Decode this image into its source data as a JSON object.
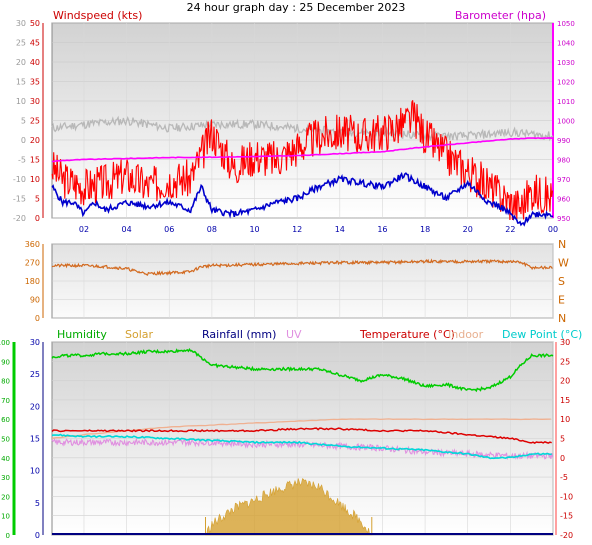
{
  "title": "24 hour graph day : 25 December 2023",
  "colors": {
    "windspeed": "#ff0000",
    "wind_avg": "#0000cc",
    "barometer": "#ff00ff",
    "baro_label": "#cc00cc",
    "gust_grey": "#b8b8b8",
    "direction": "#d2691e",
    "humidity": "#00cc00",
    "solar": "#d4a030",
    "rainfall": "#000080",
    "uv": "#e090e0",
    "temperature": "#dd0000",
    "indoor": "#f0b090",
    "dewpoint": "#00d8d8",
    "tick_grey": "#999999",
    "tick_red": "#cc0000",
    "tick_green": "#00aa00",
    "axis_blue": "#0000aa",
    "dir_tick": "#cc6600"
  },
  "panels": {
    "wind": {
      "label_left": "Windspeed (kts)",
      "label_right": "Barometer (hpa)",
      "left_outer_ticks": [
        "30",
        "25",
        "20",
        "15",
        "10",
        "5",
        "0",
        "-5",
        "-10",
        "-15",
        "-20"
      ],
      "left_inner_ticks": [
        "50",
        "45",
        "40",
        "35",
        "30",
        "25",
        "20",
        "15",
        "10",
        "5",
        "0"
      ],
      "right_ticks": [
        "1050",
        "1040",
        "1030",
        "1020",
        "1010",
        "1000",
        "990",
        "980",
        "970",
        "960",
        "950"
      ],
      "time_ticks": [
        "02",
        "04",
        "06",
        "08",
        "10",
        "12",
        "14",
        "16",
        "18",
        "20",
        "22",
        "00"
      ]
    },
    "direction": {
      "left_ticks": [
        "360",
        "270",
        "180",
        "90",
        "0"
      ],
      "right_labels": [
        "N",
        "W",
        "S",
        "E",
        "N"
      ]
    },
    "bottom": {
      "legend": {
        "humidity": "Humidity",
        "solar": "Solar",
        "rainfall": "Rainfall (mm)",
        "uv": "UV",
        "temperature": "Temperature (°C)",
        "indoor": "Indoor",
        "dewpoint": "Dew Point (°C)"
      },
      "left_outer_ticks": [
        "100",
        "90",
        "80",
        "70",
        "60",
        "50",
        "40",
        "30",
        "20",
        "10",
        "0"
      ],
      "left_inner_ticks": [
        "30",
        "25",
        "20",
        "15",
        "10",
        "5",
        "0"
      ],
      "right_ticks": [
        "30",
        "25",
        "20",
        "15",
        "10",
        "5",
        "0",
        "-5",
        "-10",
        "-15",
        "-20"
      ]
    }
  },
  "chart_data": [
    {
      "type": "line",
      "title": "Windspeed (kts) / Barometer (hpa)",
      "x_unit": "hour",
      "x_range": [
        0.5,
        24
      ],
      "ylim_windspeed": [
        0,
        50
      ],
      "ylim_barometer": [
        950,
        1050
      ],
      "series": [
        {
          "name": "Windspeed (kts)",
          "role": "gust",
          "x": [
            0.5,
            1,
            2,
            3,
            4,
            5,
            6,
            7,
            8,
            9,
            10,
            11,
            12,
            13,
            14,
            15,
            16,
            17,
            17.5,
            18,
            19,
            20,
            21,
            22,
            22.5,
            23,
            24
          ],
          "values": [
            13,
            10,
            8,
            9,
            11,
            8,
            10,
            10,
            22,
            13,
            16,
            15,
            18,
            21,
            22,
            21,
            22,
            24,
            26,
            21,
            16,
            12,
            8,
            4,
            3,
            7,
            5
          ]
        },
        {
          "name": "Windspeed (kts)",
          "role": "average",
          "x": [
            0.5,
            1,
            1.5,
            2,
            2.5,
            3,
            4,
            5,
            6,
            7,
            7.5,
            8,
            9,
            10,
            11,
            12,
            13,
            14,
            15,
            16,
            17,
            18,
            19,
            20,
            21,
            21.5,
            22,
            22.5,
            23,
            24
          ],
          "values": [
            8,
            4,
            4,
            1,
            4,
            2,
            4,
            3,
            4,
            2,
            8,
            2,
            1,
            2,
            4,
            5,
            8,
            10,
            9,
            8,
            11,
            8,
            5,
            9,
            4,
            3,
            1,
            -2,
            1,
            1
          ]
        },
        {
          "name": "Barometer (hpa)",
          "x": [
            0.5,
            1,
            2,
            4,
            6,
            8,
            10,
            12,
            14,
            16,
            18,
            19,
            20,
            21,
            22,
            23,
            24
          ],
          "values": [
            979,
            979.5,
            980,
            980.5,
            981,
            981.2,
            981.5,
            982,
            983,
            984,
            986.5,
            987.5,
            988.5,
            989.5,
            990.5,
            991,
            991
          ]
        },
        {
          "name": "",
          "role": "grey high-wind trace",
          "x": [
            0.5,
            2,
            4,
            6,
            8,
            10,
            12,
            14,
            16,
            18,
            20,
            22,
            24
          ],
          "values": [
            23,
            24,
            25,
            23,
            24,
            24,
            23,
            22,
            22,
            21,
            21,
            22,
            21
          ]
        }
      ]
    },
    {
      "type": "line",
      "title": "Wind direction",
      "x_unit": "hour",
      "x_range": [
        0.5,
        24
      ],
      "ylim": [
        0,
        360
      ],
      "series": [
        {
          "name": "Direction (degrees)",
          "x": [
            0.5,
            2,
            3,
            4,
            4.5,
            5,
            6,
            7,
            7.5,
            8,
            10,
            12,
            14,
            16,
            18,
            20,
            22,
            22.5,
            23,
            24
          ],
          "values": [
            255,
            255,
            250,
            240,
            225,
            215,
            220,
            225,
            250,
            255,
            260,
            265,
            270,
            270,
            275,
            275,
            275,
            270,
            245,
            245
          ]
        }
      ]
    },
    {
      "type": "line",
      "title": "Humidity / Solar / Rainfall / UV / Temperature / Indoor / Dew Point",
      "x_unit": "hour",
      "x_range": [
        0.5,
        24
      ],
      "ylim_humidity": [
        0,
        100
      ],
      "ylim_temperature": [
        -20,
        30
      ],
      "series": [
        {
          "name": "Humidity",
          "x": [
            0.5,
            1,
            2,
            3,
            4,
            5,
            6,
            7,
            8,
            9,
            10,
            11,
            12,
            13,
            14,
            15,
            16,
            17,
            18,
            19,
            20,
            21,
            22,
            22.5,
            23,
            24
          ],
          "values": [
            92,
            93,
            93,
            94,
            94,
            95,
            95,
            96,
            88,
            87,
            86,
            86,
            86,
            86,
            83,
            80,
            83,
            81,
            77,
            78,
            75,
            76,
            82,
            88,
            93,
            93
          ]
        },
        {
          "name": "Temperature (°C)",
          "x": [
            0.5,
            2,
            4,
            6,
            8,
            10,
            12,
            14,
            16,
            18,
            20,
            22,
            23,
            24
          ],
          "values": [
            7,
            7,
            7,
            7,
            7,
            7,
            7.5,
            7.5,
            7,
            7,
            6,
            5,
            4,
            4
          ]
        },
        {
          "name": "Indoor",
          "x": [
            0.5,
            2,
            4,
            6,
            8,
            10,
            12,
            14,
            16,
            18,
            20,
            22,
            24
          ],
          "values": [
            5,
            6,
            7,
            8,
            8.5,
            9,
            9.5,
            10,
            10,
            10,
            10,
            10,
            10
          ]
        },
        {
          "name": "Dew Point (°C)",
          "x": [
            0.5,
            2,
            4,
            6,
            8,
            10,
            12,
            14,
            16,
            18,
            20,
            21,
            22,
            23,
            24
          ],
          "values": [
            6,
            5.5,
            5.5,
            5,
            4.5,
            4,
            4,
            3,
            2.5,
            2,
            1,
            0,
            0,
            1,
            1
          ]
        },
        {
          "name": "UV",
          "x": [
            0.5,
            2,
            4,
            6,
            8,
            10,
            12,
            14,
            16,
            18,
            20,
            22,
            24
          ],
          "values": [
            4,
            4,
            4,
            4,
            4,
            3.5,
            3.5,
            3,
            2.5,
            1.5,
            1,
            0.5,
            0.5
          ]
        },
        {
          "name": "Solar",
          "x": [
            7.7,
            8,
            9,
            10,
            11,
            12,
            13,
            14,
            15,
            15.5
          ],
          "values": [
            0,
            6,
            15,
            20,
            26,
            30,
            28,
            18,
            8,
            0
          ]
        },
        {
          "name": "Rainfall (mm)",
          "x": [
            0.5,
            24
          ],
          "values": [
            0,
            0
          ]
        }
      ]
    }
  ]
}
